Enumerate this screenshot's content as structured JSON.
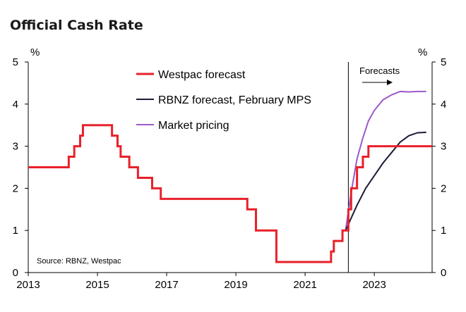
{
  "chart_data": {
    "type": "line",
    "title": "Official Cash Rate",
    "ylabel_left": "%",
    "ylabel_right": "%",
    "ylim": [
      0,
      5
    ],
    "yticks": [
      "0",
      "1",
      "2",
      "3",
      "4",
      "5"
    ],
    "xlim": [
      2013,
      2024.67
    ],
    "xticks": [
      "2013",
      "2015",
      "2017",
      "2019",
      "2021",
      "2023"
    ],
    "grid": false,
    "legend_position": "top-center",
    "annotations": {
      "forecast_label": "Forecasts",
      "forecast_start": 2022.25,
      "source": "Source: RBNZ, Westpac"
    },
    "series": [
      {
        "name": "Westpac forecast",
        "color": "#e8202a",
        "step": true,
        "points": [
          [
            2013.0,
            2.5
          ],
          [
            2014.17,
            2.75
          ],
          [
            2014.33,
            3.0
          ],
          [
            2014.5,
            3.25
          ],
          [
            2014.58,
            3.5
          ],
          [
            2015.42,
            3.25
          ],
          [
            2015.58,
            3.0
          ],
          [
            2015.67,
            2.75
          ],
          [
            2015.92,
            2.5
          ],
          [
            2016.17,
            2.25
          ],
          [
            2016.58,
            2.0
          ],
          [
            2016.83,
            1.75
          ],
          [
            2019.33,
            1.5
          ],
          [
            2019.58,
            1.0
          ],
          [
            2020.17,
            0.25
          ],
          [
            2021.75,
            0.5
          ],
          [
            2021.83,
            0.75
          ],
          [
            2022.08,
            1.0
          ],
          [
            2022.25,
            1.5
          ],
          [
            2022.33,
            2.0
          ],
          [
            2022.5,
            2.5
          ],
          [
            2022.67,
            2.75
          ],
          [
            2022.83,
            3.0
          ],
          [
            2024.67,
            3.0
          ]
        ]
      },
      {
        "name": "RBNZ forecast, February MPS",
        "color": "#1b1b3a",
        "step": false,
        "points": [
          [
            2022.17,
            1.0
          ],
          [
            2022.5,
            1.6
          ],
          [
            2022.75,
            2.0
          ],
          [
            2023.0,
            2.3
          ],
          [
            2023.25,
            2.6
          ],
          [
            2023.5,
            2.85
          ],
          [
            2023.75,
            3.1
          ],
          [
            2024.0,
            3.25
          ],
          [
            2024.25,
            3.32
          ],
          [
            2024.5,
            3.33
          ]
        ]
      },
      {
        "name": "Market pricing",
        "color": "#9b59c8",
        "step": false,
        "points": [
          [
            2022.17,
            1.0
          ],
          [
            2022.33,
            1.9
          ],
          [
            2022.5,
            2.7
          ],
          [
            2022.67,
            3.2
          ],
          [
            2022.83,
            3.6
          ],
          [
            2023.0,
            3.85
          ],
          [
            2023.25,
            4.1
          ],
          [
            2023.5,
            4.22
          ],
          [
            2023.75,
            4.3
          ],
          [
            2024.0,
            4.29
          ],
          [
            2024.25,
            4.3
          ],
          [
            2024.5,
            4.3
          ]
        ]
      }
    ]
  }
}
